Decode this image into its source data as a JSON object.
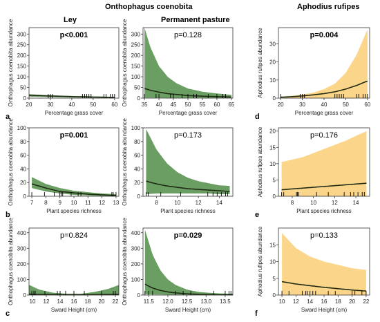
{
  "headers": {
    "species_left": "Onthophagus coenobita",
    "species_right": "Aphodius rufipes",
    "col_ley": "Ley",
    "col_pp": "Permanent pasture"
  },
  "colors": {
    "green_fill": "#6b9e63",
    "yellow_fill": "#fbd58a",
    "line": "#1f2a12"
  },
  "chart_data": [
    {
      "id": "a1",
      "panel_letter": "a",
      "type": "area",
      "ylabel": "Onthophagus coenobita abundance",
      "xlabel": "Percentage grass cover",
      "xlim": [
        20,
        62
      ],
      "ylim": [
        0,
        330
      ],
      "xticks": [
        20,
        30,
        40,
        50,
        60
      ],
      "yticks": [
        0,
        50,
        100,
        150,
        200,
        250,
        300
      ],
      "pvalue": "p<0.001",
      "p_bold": true,
      "fill": "green",
      "x": [
        20,
        30,
        40,
        50,
        60
      ],
      "fit": [
        14,
        10,
        7,
        5,
        3
      ],
      "lower": [
        7,
        5,
        3,
        2,
        1
      ],
      "upper": [
        18,
        13,
        10,
        8,
        6
      ]
    },
    {
      "id": "a2",
      "panel_letter": "",
      "type": "area",
      "ylabel": "Onthophagus coenobita abundance",
      "xlabel": "Percentage grass cover",
      "xlim": [
        34.5,
        65.5
      ],
      "ylim": [
        0,
        330
      ],
      "xticks": [
        35,
        40,
        45,
        50,
        55,
        60,
        65
      ],
      "yticks": [
        0,
        50,
        100,
        150,
        200,
        250,
        300
      ],
      "pvalue": "p=0.128",
      "p_bold": false,
      "fill": "green",
      "x": [
        35,
        37,
        40,
        43,
        46,
        50,
        55,
        60,
        65
      ],
      "fit": [
        45,
        37,
        28,
        21,
        17,
        12,
        9,
        7,
        5
      ],
      "lower": [
        2,
        2,
        1.5,
        1.2,
        1,
        0.8,
        0.6,
        0.5,
        0.4
      ],
      "upper": [
        330,
        240,
        150,
        100,
        70,
        45,
        30,
        22,
        15
      ]
    },
    {
      "id": "a3",
      "panel_letter": "d",
      "type": "area",
      "ylabel": "Aphodius rufipes abundance",
      "xlabel": "Percentage grass cover",
      "xlim": [
        19,
        61
      ],
      "ylim": [
        0,
        39
      ],
      "xticks": [
        20,
        30,
        40,
        50,
        60
      ],
      "yticks": [
        0,
        10,
        20,
        30
      ],
      "pvalue": "p=0.004",
      "p_bold": true,
      "fill": "yellow",
      "x": [
        20,
        25,
        30,
        35,
        40,
        45,
        50,
        55,
        60
      ],
      "fit": [
        0.5,
        0.8,
        1.2,
        1.8,
        2.5,
        3.5,
        5,
        7,
        9.5
      ],
      "lower": [
        0,
        0,
        0,
        0,
        0,
        0,
        0,
        0,
        0
      ],
      "upper": [
        0.8,
        1.2,
        2,
        3,
        5,
        8,
        14,
        24,
        38
      ]
    },
    {
      "id": "b1",
      "panel_letter": "b",
      "type": "area",
      "ylabel": "Onthophagus coenobita abundance",
      "xlabel": "Plant species richness",
      "xlim": [
        6.8,
        13.2
      ],
      "ylim": [
        0,
        100
      ],
      "xticks": [
        7,
        8,
        9,
        10,
        11,
        12,
        13
      ],
      "yticks": [
        0,
        20,
        40,
        60,
        80,
        100
      ],
      "pvalue": "p=0.001",
      "p_bold": true,
      "fill": "green",
      "x": [
        7,
        8,
        9,
        10,
        11,
        12,
        13
      ],
      "fit": [
        18,
        12,
        7,
        5,
        3,
        2,
        1
      ],
      "lower": [
        12,
        7,
        4,
        2,
        1,
        0.5,
        0.3
      ],
      "upper": [
        28,
        18,
        12,
        8,
        6,
        4,
        3
      ]
    },
    {
      "id": "b2",
      "panel_letter": "",
      "type": "area",
      "ylabel": "Onthophagus coenobita abundance",
      "xlabel": "Plant species richness",
      "xlim": [
        6.7,
        15.3
      ],
      "ylim": [
        0,
        100
      ],
      "xticks": [
        8,
        10,
        12,
        14
      ],
      "yticks": [
        0,
        20,
        40,
        60,
        80,
        100
      ],
      "pvalue": "p=0.173",
      "p_bold": false,
      "fill": "green",
      "x": [
        7,
        8,
        9,
        10,
        11,
        12,
        13,
        14,
        15
      ],
      "fit": [
        22,
        18,
        15,
        13,
        11,
        10,
        9,
        8,
        7
      ],
      "lower": [
        3,
        4,
        4,
        4,
        4,
        4,
        4,
        3,
        3
      ],
      "upper": [
        98,
        68,
        48,
        35,
        27,
        22,
        19,
        16,
        15
      ]
    },
    {
      "id": "b3",
      "panel_letter": "e",
      "type": "area",
      "ylabel": "Aphodius rufipes abundance",
      "xlabel": "Plant species richness",
      "xlim": [
        6.7,
        15.3
      ],
      "ylim": [
        0,
        21
      ],
      "xticks": [
        8,
        10,
        12,
        14
      ],
      "yticks": [
        0,
        5,
        10,
        15,
        20
      ],
      "pvalue": "p=0.176",
      "p_bold": false,
      "fill": "yellow",
      "x": [
        7,
        9,
        11,
        13,
        15
      ],
      "fit": [
        2,
        2.5,
        3,
        3.5,
        4
      ],
      "lower": [
        0,
        0,
        0,
        0,
        0
      ],
      "upper": [
        10.5,
        12,
        14.5,
        17,
        20
      ]
    },
    {
      "id": "c1",
      "panel_letter": "c",
      "type": "area",
      "ylabel": "Onthophagus coenobita abundance",
      "xlabel": "Sward Height (cm)",
      "xlim": [
        9.5,
        22.5
      ],
      "ylim": [
        0,
        430
      ],
      "xticks": [
        10,
        12,
        14,
        16,
        18,
        20,
        22
      ],
      "yticks": [
        0,
        100,
        200,
        300,
        400
      ],
      "pvalue": "p=0.824",
      "p_bold": false,
      "fill": "green",
      "x": [
        9.5,
        11,
        13,
        15,
        17,
        19,
        21,
        22.5
      ],
      "fit": [
        6,
        4,
        3,
        2.5,
        2.5,
        3,
        4,
        5
      ],
      "lower": [
        0,
        0,
        0,
        0,
        0,
        0,
        0,
        0
      ],
      "upper": [
        65,
        35,
        15,
        8,
        8,
        20,
        40,
        65
      ]
    },
    {
      "id": "c2",
      "panel_letter": "",
      "type": "area",
      "ylabel": "Onthophagus coenobita abundance",
      "xlabel": "Sward Height (cm)",
      "xlim": [
        11.35,
        13.7
      ],
      "ylim": [
        0,
        430
      ],
      "xticks": [
        11.5,
        12.0,
        12.5,
        13.0,
        13.5
      ],
      "yticks": [
        0,
        100,
        200,
        300,
        400
      ],
      "pvalue": "p=0.029",
      "p_bold": true,
      "fill": "green",
      "x": [
        11.4,
        11.6,
        11.8,
        12.0,
        12.2,
        12.5,
        12.8,
        13.1,
        13.4,
        13.7
      ],
      "fit": [
        70,
        45,
        30,
        20,
        14,
        8,
        5,
        3,
        2,
        1.5
      ],
      "lower": [
        5,
        4,
        3,
        2,
        1,
        0.5,
        0.3,
        0.2,
        0.1,
        0.1
      ],
      "upper": [
        420,
        260,
        160,
        100,
        65,
        35,
        20,
        14,
        10,
        8
      ]
    },
    {
      "id": "c3",
      "panel_letter": "f",
      "type": "area",
      "ylabel": "Aphodius rufipes abundance",
      "xlabel": "Sward Height (cm)",
      "xlim": [
        9.5,
        22.5
      ],
      "ylim": [
        0,
        20
      ],
      "xticks": [
        10,
        12,
        14,
        16,
        18,
        20,
        22
      ],
      "yticks": [
        0,
        5,
        10,
        15
      ],
      "pvalue": "p=0.133",
      "p_bold": false,
      "fill": "yellow",
      "x": [
        10,
        12,
        14,
        16,
        18,
        20,
        22
      ],
      "fit": [
        4,
        3.3,
        2.8,
        2.3,
        1.9,
        1.5,
        1.2
      ],
      "lower": [
        0,
        0,
        0,
        0,
        0,
        0,
        0
      ],
      "upper": [
        18.5,
        14,
        11.5,
        10,
        9,
        8,
        7.5
      ]
    }
  ],
  "rugs": {
    "a1": [
      29,
      30,
      31,
      45,
      46,
      47,
      48,
      49,
      55,
      56,
      58,
      59,
      60
    ],
    "a2": [
      35,
      39,
      40,
      44,
      45,
      48,
      50,
      52,
      53,
      57,
      60,
      62,
      63
    ],
    "a3": [
      20,
      29,
      30,
      31,
      45,
      46,
      47,
      48,
      49,
      55,
      56,
      58,
      59,
      60
    ],
    "b1": [
      7,
      7.9,
      8.6,
      9,
      9.1,
      9.2,
      9.8,
      10.3,
      10.5,
      12.7,
      12.8,
      13
    ],
    "b2": [
      7,
      7.2,
      8.4,
      10.3,
      12.9,
      13.4,
      13.8,
      14.2,
      14.6,
      14.8
    ],
    "b3": [
      7,
      7.2,
      8.4,
      8.5,
      8.6,
      10.3,
      11.4,
      12.9,
      13.5,
      13.8,
      14.2,
      14.6,
      14.8
    ],
    "c1": [
      9.9,
      10.2,
      10.4,
      11.8,
      13.6,
      14,
      14.8,
      16,
      17.5,
      20,
      21.7,
      22
    ],
    "c2": [
      11.4,
      11.5,
      11.6,
      12.2,
      12.4,
      12.6,
      13.2,
      13.5,
      13.6,
      13.65
    ],
    "c3": [
      10,
      11,
      12.9,
      13.4,
      13.6,
      14,
      14.4,
      14.8,
      16.6,
      17.6,
      20,
      20.4,
      21.4,
      22
    ]
  }
}
